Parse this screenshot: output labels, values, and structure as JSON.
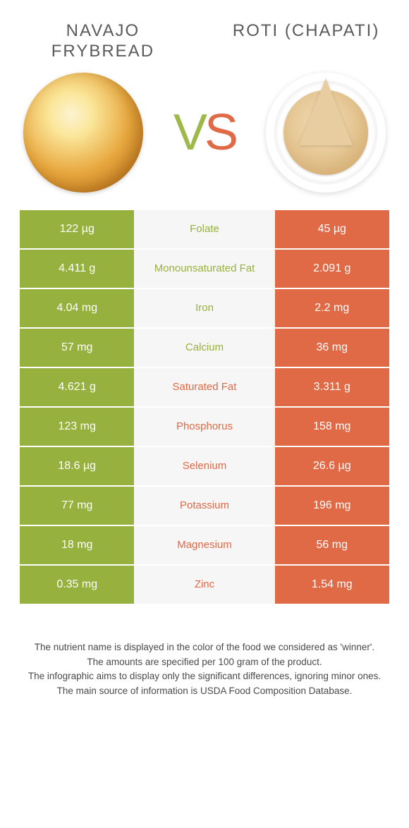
{
  "colors": {
    "green": "#96b13d",
    "orange": "#e06946",
    "mid_bg": "#f6f6f6",
    "text_gray": "#5a5a5a"
  },
  "header": {
    "left_title": "NAVAJO FRYBREAD",
    "right_title": "ROTI (CHAPATI)",
    "vs_label_v": "V",
    "vs_label_s": "S"
  },
  "table": {
    "rows": [
      {
        "left": "122 µg",
        "nutrient": "Folate",
        "right": "45 µg",
        "winner": "left"
      },
      {
        "left": "4.411 g",
        "nutrient": "Monounsaturated Fat",
        "right": "2.091 g",
        "winner": "left"
      },
      {
        "left": "4.04 mg",
        "nutrient": "Iron",
        "right": "2.2 mg",
        "winner": "left"
      },
      {
        "left": "57 mg",
        "nutrient": "Calcium",
        "right": "36 mg",
        "winner": "left"
      },
      {
        "left": "4.621 g",
        "nutrient": "Saturated Fat",
        "right": "3.311 g",
        "winner": "right"
      },
      {
        "left": "123 mg",
        "nutrient": "Phosphorus",
        "right": "158 mg",
        "winner": "right"
      },
      {
        "left": "18.6 µg",
        "nutrient": "Selenium",
        "right": "26.6 µg",
        "winner": "right"
      },
      {
        "left": "77 mg",
        "nutrient": "Potassium",
        "right": "196 mg",
        "winner": "right"
      },
      {
        "left": "18 mg",
        "nutrient": "Magnesium",
        "right": "56 mg",
        "winner": "right"
      },
      {
        "left": "0.35 mg",
        "nutrient": "Zinc",
        "right": "1.54 mg",
        "winner": "right"
      }
    ]
  },
  "footnotes": {
    "line1": "The nutrient name is displayed in the color of the food we considered as 'winner'.",
    "line2": "The amounts are specified per 100 gram of the product.",
    "line3": "The infographic aims to display only the significant differences, ignoring minor ones.",
    "line4": "The main source of information is USDA Food Composition Database."
  }
}
